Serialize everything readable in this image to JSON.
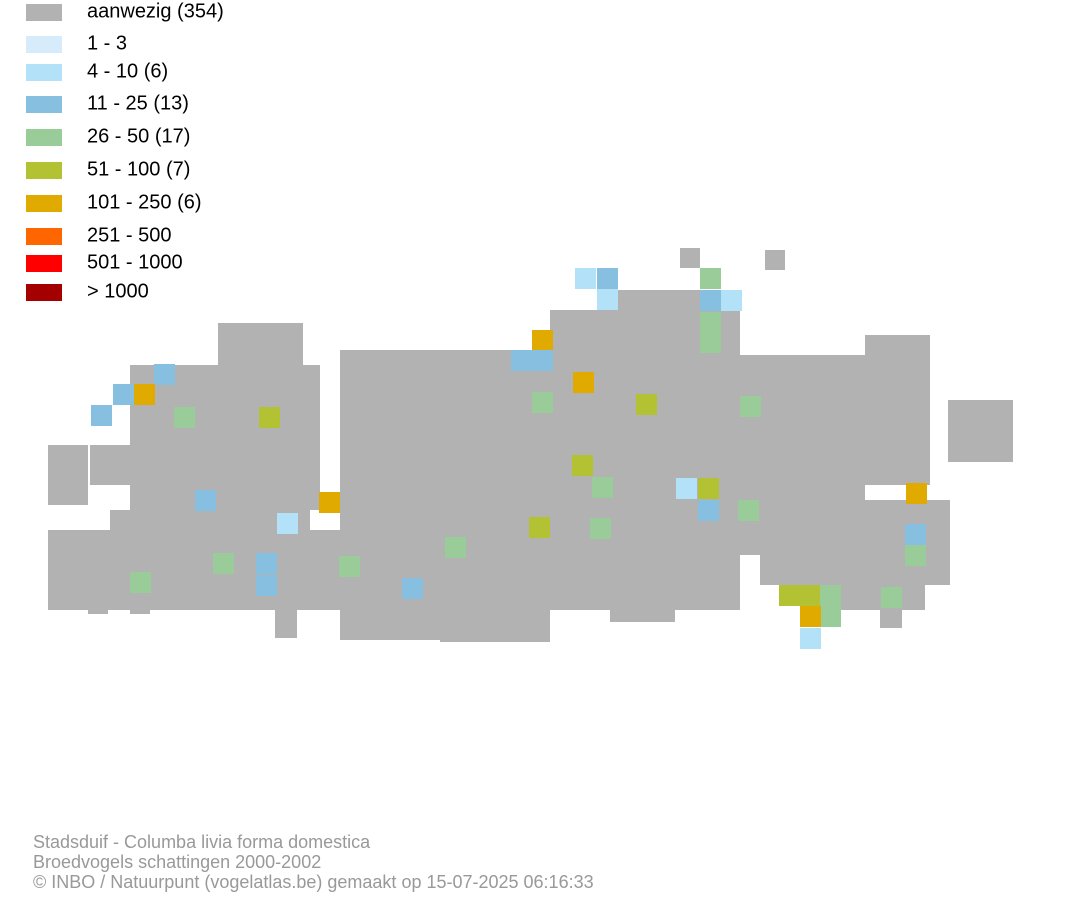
{
  "legend": [
    {
      "label": "aanwezig (354)",
      "color": "#b2b2b2"
    },
    {
      "label": "1 - 3",
      "color": "#d6ecfa"
    },
    {
      "label": "4 - 10 (6)",
      "color": "#b3e2f8"
    },
    {
      "label": "11 - 25 (13)",
      "color": "#86bfdf"
    },
    {
      "label": "26 - 50 (17)",
      "color": "#99cc99"
    },
    {
      "label": "51 - 100 (7)",
      "color": "#b3c233"
    },
    {
      "label": "101 - 250 (6)",
      "color": "#e0aa00"
    },
    {
      "label": "251 - 500",
      "color": "#ff6600"
    },
    {
      "label": "501 - 1000",
      "color": "#ff0000"
    },
    {
      "label": "> 1000",
      "color": "#a50000"
    }
  ],
  "footer": [
    "Stadsduif - Columba livia forma domestica",
    "Broedvogels schattingen 2000-2002",
    "© INBO / Natuurpunt (vogelatlas.be) gemaakt op 15-07-2025 06:16:33"
  ]
}
